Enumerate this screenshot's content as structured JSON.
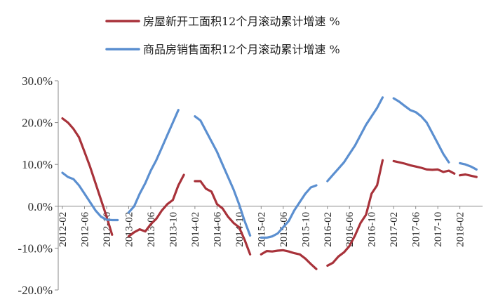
{
  "chart_data": {
    "type": "line",
    "ylim": [
      -20,
      30
    ],
    "y_ticks": [
      "30.0%",
      "20.0%",
      "10.0%",
      "0.0%",
      "-10.0%",
      "-20.0%"
    ],
    "x_tick_labels": [
      "2012-02",
      "2012-06",
      "2012-10",
      "2013-02",
      "2013-06",
      "2013-10",
      "2014-02",
      "2014-06",
      "2014-10",
      "2015-02",
      "2015-06",
      "2015-10",
      "2016-02",
      "2016-06",
      "2016-10",
      "2017-02",
      "2017-06",
      "2017-10",
      "2018-02"
    ],
    "legend_position": "top",
    "grid": false,
    "series": [
      {
        "name": "房屋新开工面积12个月滚动累计增速 %",
        "color": "#a8323a",
        "segments": [
          [
            [
              "2012-02",
              21
            ],
            [
              "2012-03",
              20
            ],
            [
              "2012-04",
              18.5
            ],
            [
              "2012-05",
              16.5
            ],
            [
              "2012-06",
              13
            ],
            [
              "2012-07",
              9.5
            ],
            [
              "2012-08",
              5.5
            ],
            [
              "2012-09",
              1.5
            ],
            [
              "2012-10",
              -2.5
            ],
            [
              "2012-11",
              -6.8
            ]
          ],
          [
            [
              "2013-02",
              -7.2
            ],
            [
              "2013-03",
              -6.2
            ],
            [
              "2013-04",
              -5.5
            ],
            [
              "2013-05",
              -6
            ],
            [
              "2013-06",
              -4.3
            ],
            [
              "2013-07",
              -3
            ],
            [
              "2013-08",
              -1
            ],
            [
              "2013-09",
              0.5
            ],
            [
              "2013-10",
              1.5
            ],
            [
              "2013-11",
              5
            ],
            [
              "2013-12",
              7.5
            ]
          ],
          [
            [
              "2014-02",
              6
            ],
            [
              "2014-03",
              6
            ],
            [
              "2014-04",
              4.2
            ],
            [
              "2014-05",
              3.5
            ],
            [
              "2014-06",
              0.5
            ],
            [
              "2014-07",
              -0.5
            ],
            [
              "2014-08",
              -2.5
            ],
            [
              "2014-09",
              -4
            ],
            [
              "2014-10",
              -5
            ],
            [
              "2014-11",
              -8
            ],
            [
              "2014-12",
              -11.5
            ]
          ],
          [
            [
              "2015-02",
              -11.5
            ],
            [
              "2015-03",
              -10.7
            ],
            [
              "2015-04",
              -10.8
            ],
            [
              "2015-05",
              -10.6
            ],
            [
              "2015-06",
              -10.5
            ],
            [
              "2015-07",
              -10.8
            ],
            [
              "2015-08",
              -11.2
            ],
            [
              "2015-09",
              -11.5
            ],
            [
              "2015-10",
              -12.5
            ],
            [
              "2015-11",
              -13.8
            ],
            [
              "2015-12",
              -15
            ]
          ],
          [
            [
              "2016-02",
              -14.2
            ],
            [
              "2016-03",
              -13.5
            ],
            [
              "2016-04",
              -12
            ],
            [
              "2016-05",
              -11
            ],
            [
              "2016-06",
              -9.5
            ],
            [
              "2016-07",
              -7
            ],
            [
              "2016-08",
              -4
            ],
            [
              "2016-09",
              -2
            ],
            [
              "2016-10",
              3
            ],
            [
              "2016-11",
              5
            ],
            [
              "2016-12",
              11
            ]
          ],
          [
            [
              "2017-02",
              10.8
            ],
            [
              "2017-03",
              10.5
            ],
            [
              "2017-04",
              10.2
            ],
            [
              "2017-05",
              9.8
            ],
            [
              "2017-06",
              9.5
            ],
            [
              "2017-07",
              9.2
            ],
            [
              "2017-08",
              8.8
            ],
            [
              "2017-09",
              8.7
            ],
            [
              "2017-10",
              8.8
            ],
            [
              "2017-11",
              8.2
            ],
            [
              "2017-12",
              8.5
            ],
            [
              "2018-01",
              7.8
            ]
          ],
          [
            [
              "2018-02",
              7.4
            ],
            [
              "2018-03",
              7.6
            ],
            [
              "2018-04",
              7.3
            ],
            [
              "2018-05",
              7
            ]
          ]
        ]
      },
      {
        "name": "商品房销售面积12个月滚动累计增速 %",
        "color": "#5b8fd0",
        "segments": [
          [
            [
              "2012-02",
              8
            ],
            [
              "2012-03",
              7
            ],
            [
              "2012-04",
              6.5
            ],
            [
              "2012-05",
              5
            ],
            [
              "2012-06",
              3
            ],
            [
              "2012-07",
              1
            ],
            [
              "2012-08",
              -1
            ],
            [
              "2012-09",
              -2.5
            ],
            [
              "2012-10",
              -3.2
            ],
            [
              "2012-11",
              -3.3
            ],
            [
              "2012-12",
              -3.3
            ]
          ],
          [
            [
              "2013-02",
              -1.5
            ],
            [
              "2013-03",
              0
            ],
            [
              "2013-04",
              3
            ],
            [
              "2013-05",
              5.5
            ],
            [
              "2013-06",
              8.5
            ],
            [
              "2013-07",
              11
            ],
            [
              "2013-08",
              14
            ],
            [
              "2013-09",
              17
            ],
            [
              "2013-10",
              20
            ],
            [
              "2013-11",
              23
            ]
          ],
          [
            [
              "2014-02",
              21.5
            ],
            [
              "2014-03",
              20.5
            ],
            [
              "2014-04",
              18
            ],
            [
              "2014-05",
              15.5
            ],
            [
              "2014-06",
              13
            ],
            [
              "2014-07",
              10
            ],
            [
              "2014-08",
              7
            ],
            [
              "2014-09",
              4
            ],
            [
              "2014-10",
              0.5
            ],
            [
              "2014-11",
              -3.5
            ],
            [
              "2014-12",
              -7
            ]
          ],
          [
            [
              "2015-02",
              -7.5
            ],
            [
              "2015-03",
              -7.5
            ],
            [
              "2015-04",
              -7.2
            ],
            [
              "2015-05",
              -6.5
            ],
            [
              "2015-06",
              -5
            ],
            [
              "2015-07",
              -3.5
            ],
            [
              "2015-08",
              -1
            ],
            [
              "2015-09",
              1
            ],
            [
              "2015-10",
              3
            ],
            [
              "2015-11",
              4.5
            ],
            [
              "2015-12",
              5
            ]
          ],
          [
            [
              "2016-02",
              6
            ],
            [
              "2016-03",
              7.5
            ],
            [
              "2016-04",
              9
            ],
            [
              "2016-05",
              10.5
            ],
            [
              "2016-06",
              12.5
            ],
            [
              "2016-07",
              14.5
            ],
            [
              "2016-08",
              17
            ],
            [
              "2016-09",
              19.5
            ],
            [
              "2016-10",
              21.5
            ],
            [
              "2016-11",
              23.5
            ],
            [
              "2016-12",
              26
            ]
          ],
          [
            [
              "2017-02",
              25.8
            ],
            [
              "2017-03",
              25
            ],
            [
              "2017-04",
              24
            ],
            [
              "2017-05",
              23
            ],
            [
              "2017-06",
              22.5
            ],
            [
              "2017-07",
              21.5
            ],
            [
              "2017-08",
              20
            ],
            [
              "2017-09",
              17.5
            ],
            [
              "2017-10",
              15
            ],
            [
              "2017-11",
              12.5
            ],
            [
              "2017-12",
              10.5
            ]
          ],
          [
            [
              "2018-02",
              10.3
            ],
            [
              "2018-03",
              10
            ],
            [
              "2018-04",
              9.5
            ],
            [
              "2018-05",
              8.8
            ]
          ]
        ]
      }
    ]
  }
}
